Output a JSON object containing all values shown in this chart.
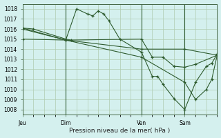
{
  "title": "Pression niveau de la mer( hPa )",
  "background_color": "#d4f0ee",
  "grid_color": "#b0ccb0",
  "line_color": "#2d5a2d",
  "ylim": [
    1007.5,
    1018.5
  ],
  "yticks": [
    1008,
    1009,
    1010,
    1011,
    1012,
    1013,
    1014,
    1015,
    1016,
    1017,
    1018
  ],
  "xlim": [
    0,
    18
  ],
  "xtick_labels": [
    "Jeu",
    "Dim",
    "Ven",
    "Sam"
  ],
  "xtick_positions": [
    0,
    4,
    11,
    15
  ],
  "vline_positions": [
    4,
    11,
    15
  ],
  "series": [
    [
      0,
      1016.1,
      1,
      1016.0,
      4,
      1015.0,
      4.5,
      1014.9,
      11,
      1015.0,
      12,
      1013.2,
      13,
      1013.2,
      14,
      1012.3,
      15,
      1012.2,
      16,
      1012.5,
      18,
      1013.4
    ],
    [
      0,
      1016.0,
      4,
      1014.9,
      5,
      1018.0,
      6,
      1017.5,
      6.5,
      1017.3,
      7,
      1017.8,
      7.5,
      1017.5,
      8,
      1016.8,
      9,
      1015.0,
      11,
      1013.7,
      12,
      1011.3,
      12.5,
      1011.3,
      13,
      1010.5,
      14,
      1009.1,
      15,
      1008.0,
      16,
      1010.7,
      17,
      1012.3,
      17.5,
      1012.6,
      18,
      1013.5
    ],
    [
      0,
      1015.0,
      4,
      1014.9,
      11,
      1013.2,
      15,
      1010.7,
      16,
      1009.0,
      17,
      1010.0,
      17.5,
      1011.0,
      18,
      1013.4
    ],
    [
      0,
      1016.1,
      4,
      1014.9,
      11,
      1014.0,
      15,
      1014.0,
      18,
      1013.4
    ]
  ]
}
